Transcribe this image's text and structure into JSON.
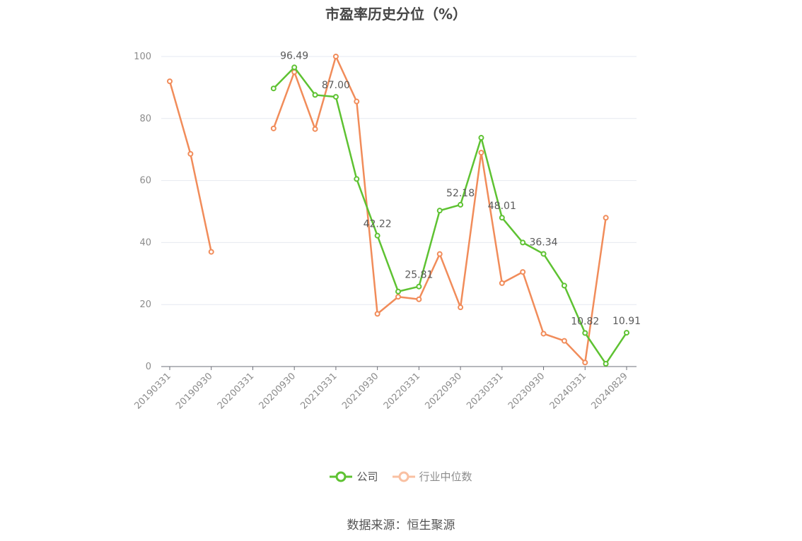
{
  "chart_data": {
    "type": "line",
    "title": "市盈率历史分位（%）",
    "categories": [
      "20190331",
      "20190630",
      "20190930",
      "20191231",
      "20200331",
      "20200630",
      "20200930",
      "20201231",
      "20210331",
      "20210630",
      "20210930",
      "20211231",
      "20220331",
      "20220630",
      "20220930",
      "20221231",
      "20230331",
      "20230630",
      "20230930",
      "20231231",
      "20240331",
      "20240630",
      "20240829"
    ],
    "x_tick_labels": [
      "20190331",
      "20190930",
      "20200331",
      "20200930",
      "20210331",
      "20210930",
      "20220331",
      "20220930",
      "20230331",
      "20230930",
      "20240331",
      "20240829"
    ],
    "ylim": [
      0,
      100
    ],
    "yticks": [
      0,
      20,
      40,
      60,
      80,
      100
    ],
    "grid": true,
    "legend_position": "bottom",
    "series": [
      {
        "name": "公司",
        "color": "#5ec232",
        "values": [
          null,
          null,
          null,
          null,
          null,
          89.7,
          96.49,
          87.6,
          87.0,
          60.5,
          42.22,
          24.2,
          25.81,
          50.3,
          52.18,
          73.8,
          48.01,
          40.0,
          36.34,
          26.1,
          10.82,
          0.9,
          10.91
        ],
        "labeled_points": {
          "6": "96.49",
          "8": "87.00",
          "10": "42.22",
          "12": "25.81",
          "14": "52.18",
          "16": "48.01",
          "18": "36.34",
          "20": "10.82",
          "22": "10.91"
        }
      },
      {
        "name": "行业中位数",
        "color": "#f18c5a",
        "values": [
          92.0,
          68.6,
          37.0,
          null,
          null,
          76.8,
          95.0,
          76.6,
          100.0,
          85.5,
          17.0,
          22.5,
          21.7,
          36.3,
          19.1,
          69.0,
          26.9,
          30.5,
          10.6,
          8.3,
          1.3,
          48.0,
          null
        ]
      }
    ]
  },
  "legend": {
    "company": "公司",
    "industry": "行业中位数"
  },
  "source": "数据来源：恒生聚源"
}
